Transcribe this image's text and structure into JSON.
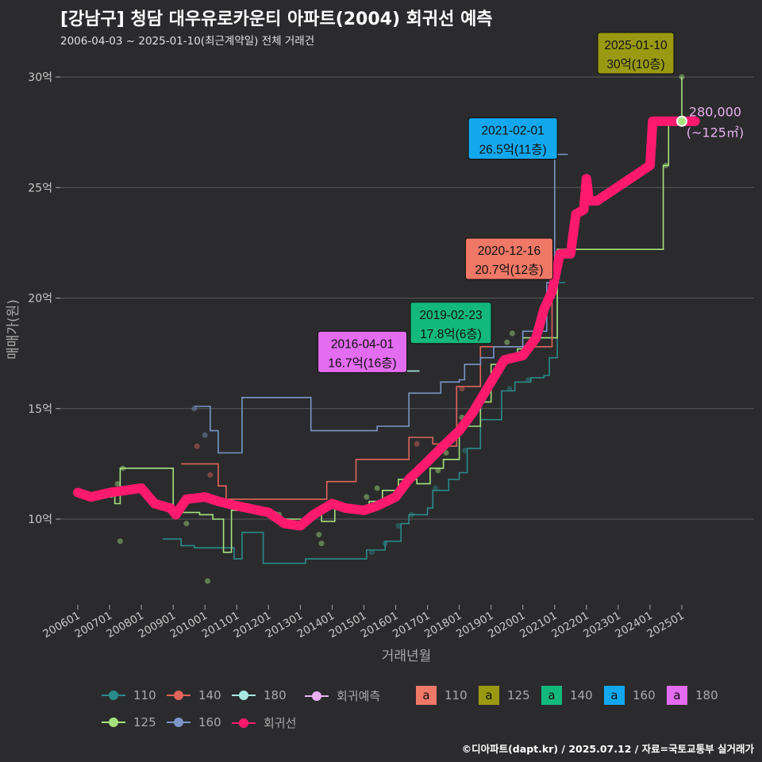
{
  "header": {
    "title": "[강남구] 청담 대우유로카운티 아파트(2004) 회귀선 예측",
    "subtitle": "2006-04-03 ~ 2025-01-10(최근계약일) 전체 거래건"
  },
  "caption": "©디아파트(dapt.kr) / 2025.07.12 / 자료=국토교통부 실거래가",
  "colors": {
    "background": "#2b2b2d",
    "grid": "#5a5a5a",
    "s110": "#2b8a8a",
    "s125": "#a6e27e",
    "s140": "#e0655b",
    "s160": "#7b96c8",
    "s180": "#a8e8e4",
    "regression": "#ff1a6e",
    "forecast": "#e8b0f0"
  },
  "legend": {
    "series_items": [
      {
        "label": "110",
        "color": "#2b8a8a"
      },
      {
        "label": "140",
        "color": "#e0655b"
      },
      {
        "label": "180",
        "color": "#a8e8e4"
      },
      {
        "label": "회귀예측",
        "color": "#e8b0f0"
      },
      {
        "label": "125",
        "color": "#a6e27e"
      },
      {
        "label": "160",
        "color": "#7b96c8"
      },
      {
        "label": "회귀선",
        "color": "#ff1a6e"
      }
    ],
    "label_items": [
      {
        "label": "110",
        "color": "#f07866",
        "glyph": "a"
      },
      {
        "label": "125",
        "color": "#9a9a12",
        "glyph": "a"
      },
      {
        "label": "140",
        "color": "#12b87c",
        "glyph": "a"
      },
      {
        "label": "160",
        "color": "#12a8ee",
        "glyph": "a"
      },
      {
        "label": "180",
        "color": "#e36cf0",
        "glyph": "a"
      }
    ]
  },
  "chart_data": {
    "type": "line",
    "xlabel": "거래년월",
    "ylabel": "매매가(원)",
    "x_range": [
      "2006-01",
      "2025-06"
    ],
    "ylim": [
      7.5,
      31
    ],
    "y_ticks": [
      {
        "value": 10,
        "label": "10억"
      },
      {
        "value": 15,
        "label": "15억"
      },
      {
        "value": 20,
        "label": "20억"
      },
      {
        "value": 25,
        "label": "25억"
      },
      {
        "value": 30,
        "label": "30억"
      }
    ],
    "x_ticks": [
      {
        "value": "2006-01",
        "label": "200601"
      },
      {
        "value": "2007-01",
        "label": "200701"
      },
      {
        "value": "2008-01",
        "label": "200801"
      },
      {
        "value": "2009-01",
        "label": "200901"
      },
      {
        "value": "2010-01",
        "label": "201001"
      },
      {
        "value": "2011-01",
        "label": "201101"
      },
      {
        "value": "2012-01",
        "label": "201201"
      },
      {
        "value": "2013-01",
        "label": "201301"
      },
      {
        "value": "2014-01",
        "label": "201401"
      },
      {
        "value": "2015-01",
        "label": "201501"
      },
      {
        "value": "2016-01",
        "label": "201601"
      },
      {
        "value": "2017-01",
        "label": "201701"
      },
      {
        "value": "2018-01",
        "label": "201801"
      },
      {
        "value": "2019-01",
        "label": "201901"
      },
      {
        "value": "2020-01",
        "label": "202001"
      },
      {
        "value": "2021-01",
        "label": "202101"
      },
      {
        "value": "2022-01",
        "label": "202201"
      },
      {
        "value": "2023-01",
        "label": "202301"
      },
      {
        "value": "2024-01",
        "label": "202401"
      },
      {
        "value": "2025-01",
        "label": "202501"
      }
    ],
    "grid": true,
    "legend_position": "bottom",
    "series": [
      {
        "name": "110",
        "color": "#2b8a8a",
        "points": [
          [
            "2008-09",
            9.1
          ],
          [
            "2009-01",
            9.1
          ],
          [
            "2009-04",
            8.8
          ],
          [
            "2009-09",
            8.7
          ],
          [
            "2010-06",
            8.7
          ],
          [
            "2010-12",
            8.2
          ],
          [
            "2011-03",
            9.4
          ],
          [
            "2011-09",
            9.4
          ],
          [
            "2011-11",
            8.0
          ],
          [
            "2012-06",
            8.0
          ],
          [
            "2013-03",
            8.2
          ],
          [
            "2013-06",
            8.2
          ],
          [
            "2015-02",
            8.6
          ],
          [
            "2015-09",
            9.0
          ],
          [
            "2016-03",
            9.8
          ],
          [
            "2016-06",
            10.2
          ],
          [
            "2017-01",
            10.5
          ],
          [
            "2017-03",
            11.3
          ],
          [
            "2017-09",
            11.8
          ],
          [
            "2018-01",
            12.1
          ],
          [
            "2018-04",
            13.2
          ],
          [
            "2018-09",
            14.5
          ],
          [
            "2019-05",
            15.8
          ],
          [
            "2019-10",
            16.2
          ],
          [
            "2020-04",
            16.4
          ],
          [
            "2020-09",
            16.5
          ],
          [
            "2020-11",
            17.3
          ],
          [
            "2021-02",
            20.7
          ],
          [
            "2021-05",
            20.7
          ]
        ]
      },
      {
        "name": "125",
        "color": "#a6e27e",
        "points": [
          [
            "2006-04",
            11.0
          ],
          [
            "2006-07",
            11.2
          ],
          [
            "2006-11",
            11.0
          ],
          [
            "2007-02",
            11.2
          ],
          [
            "2007-03",
            10.7
          ],
          [
            "2007-05",
            12.3
          ],
          [
            "2008-05",
            12.3
          ],
          [
            "2008-11",
            12.3
          ],
          [
            "2009-01",
            10.3
          ],
          [
            "2009-06",
            10.3
          ],
          [
            "2009-11",
            10.2
          ],
          [
            "2010-04",
            10.0
          ],
          [
            "2010-08",
            8.5
          ],
          [
            "2010-11",
            10.4
          ],
          [
            "2011-06",
            10.4
          ],
          [
            "2012-01",
            10.3
          ],
          [
            "2012-04",
            10.0
          ],
          [
            "2013-03",
            10.0
          ],
          [
            "2013-06",
            10.3
          ],
          [
            "2013-09",
            9.9
          ],
          [
            "2014-02",
            10.5
          ],
          [
            "2014-09",
            10.5
          ],
          [
            "2015-03",
            10.8
          ],
          [
            "2015-08",
            11.3
          ],
          [
            "2016-02",
            11.8
          ],
          [
            "2016-09",
            11.6
          ],
          [
            "2017-02",
            12.3
          ],
          [
            "2017-07",
            12.7
          ],
          [
            "2018-01",
            14.2
          ],
          [
            "2018-09",
            15.3
          ],
          [
            "2019-01",
            17.0
          ],
          [
            "2019-06",
            17.2
          ],
          [
            "2019-11",
            17.7
          ],
          [
            "2020-01",
            18.2
          ],
          [
            "2021-02",
            22.2
          ],
          [
            "2021-06",
            22.2
          ],
          [
            "2024-06",
            26.0
          ],
          [
            "2024-08",
            28.0
          ],
          [
            "2025-01",
            30.0
          ]
        ]
      },
      {
        "name": "140",
        "color": "#e0655b",
        "points": [
          [
            "2009-04",
            12.5
          ],
          [
            "2010-01",
            12.5
          ],
          [
            "2010-06",
            11.5
          ],
          [
            "2010-09",
            10.9
          ],
          [
            "2013-11",
            11.7
          ],
          [
            "2014-05",
            11.7
          ],
          [
            "2014-10",
            12.7
          ],
          [
            "2015-04",
            12.7
          ],
          [
            "2016-06",
            13.7
          ],
          [
            "2016-11",
            13.7
          ],
          [
            "2017-03",
            13.4
          ],
          [
            "2017-09",
            13.3
          ],
          [
            "2017-12",
            16.0
          ],
          [
            "2018-04",
            16.0
          ],
          [
            "2018-09",
            17.8
          ],
          [
            "2019-01",
            17.8
          ],
          [
            "2020-12",
            20.7
          ]
        ]
      },
      {
        "name": "160",
        "color": "#7b96c8",
        "points": [
          [
            "2009-09",
            15.1
          ],
          [
            "2010-03",
            14.0
          ],
          [
            "2010-06",
            13.0
          ],
          [
            "2010-09",
            13.0
          ],
          [
            "2011-03",
            15.5
          ],
          [
            "2011-09",
            15.5
          ],
          [
            "2013-05",
            14.0
          ],
          [
            "2013-11",
            14.0
          ],
          [
            "2015-06",
            14.2
          ],
          [
            "2015-11",
            14.2
          ],
          [
            "2016-06",
            15.7
          ],
          [
            "2017-01",
            15.7
          ],
          [
            "2017-06",
            16.2
          ],
          [
            "2018-01",
            16.3
          ],
          [
            "2018-03",
            17.0
          ],
          [
            "2018-09",
            17.3
          ],
          [
            "2019-02",
            17.8
          ],
          [
            "2020-01",
            18.5
          ],
          [
            "2020-10",
            20.7
          ],
          [
            "2021-01",
            26.5
          ],
          [
            "2021-06",
            26.5
          ]
        ]
      },
      {
        "name": "180",
        "color": "#a8e8e4",
        "points": [
          [
            "2016-04",
            16.7
          ],
          [
            "2016-10",
            16.7
          ]
        ]
      },
      {
        "name": "회귀선",
        "color": "#ff1a6e",
        "points": [
          [
            "2006-01",
            11.2
          ],
          [
            "2006-06",
            11.0
          ],
          [
            "2007-01",
            11.2
          ],
          [
            "2008-01",
            11.4
          ],
          [
            "2008-06",
            10.7
          ],
          [
            "2008-12",
            10.5
          ],
          [
            "2009-02",
            10.2
          ],
          [
            "2009-06",
            10.9
          ],
          [
            "2010-01",
            11.0
          ],
          [
            "2010-06",
            10.8
          ],
          [
            "2011-01",
            10.6
          ],
          [
            "2012-01",
            10.3
          ],
          [
            "2012-07",
            9.8
          ],
          [
            "2013-01",
            9.7
          ],
          [
            "2013-06",
            10.2
          ],
          [
            "2014-01",
            10.7
          ],
          [
            "2014-06",
            10.5
          ],
          [
            "2015-01",
            10.4
          ],
          [
            "2015-06",
            10.6
          ],
          [
            "2016-01",
            11.0
          ],
          [
            "2016-06",
            11.8
          ],
          [
            "2017-01",
            12.6
          ],
          [
            "2017-06",
            13.2
          ],
          [
            "2018-01",
            14.0
          ],
          [
            "2018-06",
            14.8
          ],
          [
            "2019-01",
            16.2
          ],
          [
            "2019-06",
            17.2
          ],
          [
            "2020-01",
            17.4
          ],
          [
            "2020-06",
            18.2
          ],
          [
            "2020-09",
            19.5
          ],
          [
            "2020-12",
            20.3
          ],
          [
            "2021-03",
            22.0
          ],
          [
            "2021-07",
            22.0
          ],
          [
            "2021-09",
            23.8
          ],
          [
            "2021-12",
            24.0
          ],
          [
            "2022-01",
            25.4
          ],
          [
            "2022-02",
            24.4
          ],
          [
            "2022-05",
            24.4
          ],
          [
            "2024-01",
            26.0
          ],
          [
            "2024-02",
            28.0
          ],
          [
            "2024-07",
            28.0
          ],
          [
            "2025-01",
            28.0
          ],
          [
            "2025-06",
            28.0
          ]
        ]
      }
    ],
    "forecast_point": {
      "x": "2025-01",
      "y": 28.0,
      "label_value": "280,000",
      "label_area": "(~125㎡)"
    },
    "annotations": [
      {
        "date": "2025-01-10",
        "price": "30억(10층)",
        "x": "2025-01",
        "y": 30.0,
        "color": "#9a9a12",
        "series": "125"
      },
      {
        "date": "2021-02-01",
        "price": "26.5억(11층)",
        "x": "2021-02",
        "y": 26.5,
        "color": "#12a8ee",
        "series": "160"
      },
      {
        "date": "2020-12-16",
        "price": "20.7억(12층)",
        "x": "2020-12",
        "y": 20.7,
        "color": "#f07866",
        "series": "110"
      },
      {
        "date": "2019-02-23",
        "price": "17.8억(6층)",
        "x": "2019-02",
        "y": 17.8,
        "color": "#12b87c",
        "series": "140"
      },
      {
        "date": "2016-04-01",
        "price": "16.7억(16층)",
        "x": "2016-04",
        "y": 16.7,
        "color": "#e36cf0",
        "series": "180"
      }
    ],
    "scatter": {
      "125": [
        [
          "2007-04",
          11.6
        ],
        [
          "2007-06",
          12.3
        ],
        [
          "2007-05",
          9.0
        ],
        [
          "2009-06",
          9.8
        ],
        [
          "2010-02",
          7.2
        ],
        [
          "2011-01",
          10.5
        ],
        [
          "2012-05",
          10.2
        ],
        [
          "2013-08",
          9.3
        ],
        [
          "2013-09",
          8.9
        ],
        [
          "2014-05",
          10.6
        ],
        [
          "2015-02",
          11.0
        ],
        [
          "2015-06",
          11.4
        ],
        [
          "2016-03",
          11.5
        ],
        [
          "2016-08",
          11.9
        ],
        [
          "2017-05",
          12.2
        ],
        [
          "2017-08",
          13.0
        ],
        [
          "2018-02",
          14.6
        ],
        [
          "2018-10",
          15.6
        ],
        [
          "2019-04",
          16.8
        ],
        [
          "2019-07",
          18.0
        ],
        [
          "2019-09",
          18.4
        ],
        [
          "2024-07",
          26.0
        ],
        [
          "2025-01",
          30.0
        ]
      ],
      "110": [
        [
          "2015-04",
          8.5
        ],
        [
          "2015-09",
          8.9
        ],
        [
          "2016-02",
          9.7
        ],
        [
          "2016-07",
          10.2
        ],
        [
          "2017-04",
          11.4
        ],
        [
          "2018-03",
          13.1
        ],
        [
          "2019-08",
          15.9
        ],
        [
          "2020-03",
          16.3
        ]
      ],
      "140": [
        [
          "2009-10",
          13.3
        ],
        [
          "2010-03",
          12.0
        ],
        [
          "2016-09",
          13.4
        ],
        [
          "2018-02",
          15.9
        ]
      ],
      "160": [
        [
          "2009-09",
          15.0
        ],
        [
          "2010-01",
          13.8
        ]
      ]
    }
  }
}
